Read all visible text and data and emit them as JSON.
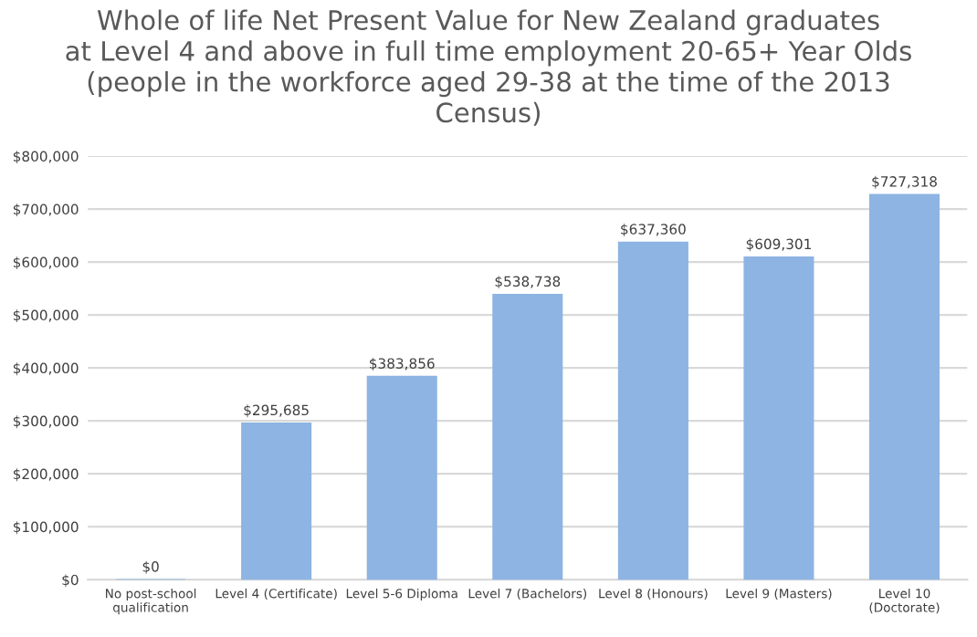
{
  "chart_data": {
    "type": "bar",
    "title": "Whole of life Net Present Value for New Zealand graduates\nat Level 4 and above in full time employment 20-65+ Year Olds\n(people in the workforce aged 29-38 at the time of the 2013\nCensus)",
    "categories": [
      "No post-school\nqualification",
      "Level 4 (Certificate)",
      "Level 5-6 Diploma",
      "Level 7 (Bachelors)",
      "Level 8 (Honours)",
      "Level 9 (Masters)",
      "Level 10\n(Doctorate)"
    ],
    "values": [
      0,
      295685,
      383856,
      538738,
      637360,
      609301,
      727318
    ],
    "value_labels": [
      "$0",
      "$295,685",
      "$383,856",
      "$538,738",
      "$637,360",
      "$609,301",
      "$727,318"
    ],
    "color": "#8db4e2",
    "ylim": [
      0,
      800000
    ],
    "yticks": [
      {
        "value": 0,
        "label": "$0"
      },
      {
        "value": 100000,
        "label": "$100,000"
      },
      {
        "value": 200000,
        "label": "$200,000"
      },
      {
        "value": 300000,
        "label": "$300,000"
      },
      {
        "value": 400000,
        "label": "$400,000"
      },
      {
        "value": 500000,
        "label": "$500,000"
      },
      {
        "value": 600000,
        "label": "$600,000"
      },
      {
        "value": 700000,
        "label": "$700,000"
      },
      {
        "value": 800000,
        "label": "$800,000"
      }
    ],
    "grid": "y"
  }
}
